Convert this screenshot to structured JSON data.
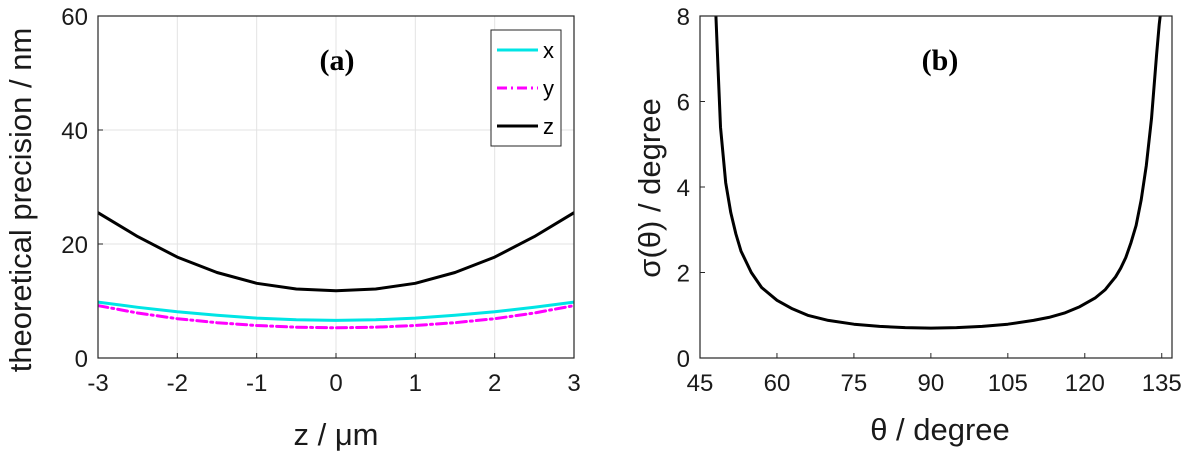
{
  "chart_data": [
    {
      "type": "line",
      "panel_label": "(a)",
      "xlabel": "z / μm",
      "ylabel": "theoretical precision / nm",
      "xlim": [
        -3,
        3
      ],
      "ylim": [
        0,
        60
      ],
      "xticks": [
        -3,
        -2,
        -1,
        0,
        1,
        2,
        3
      ],
      "yticks": [
        0,
        20,
        40,
        60
      ],
      "grid": true,
      "legend_position": "top-right",
      "x": [
        -3,
        -2.5,
        -2,
        -1.5,
        -1,
        -0.5,
        0,
        0.5,
        1,
        1.5,
        2,
        2.5,
        3
      ],
      "series": [
        {
          "name": "x",
          "color": "#00e5e5",
          "style": "solid",
          "values": [
            9.8,
            8.9,
            8.1,
            7.5,
            7.0,
            6.7,
            6.6,
            6.7,
            7.0,
            7.5,
            8.1,
            8.9,
            9.8
          ]
        },
        {
          "name": "y",
          "color": "#ff00ff",
          "style": "dashdot",
          "values": [
            9.2,
            7.9,
            6.9,
            6.2,
            5.7,
            5.4,
            5.3,
            5.4,
            5.7,
            6.2,
            6.9,
            7.9,
            9.2
          ]
        },
        {
          "name": "z",
          "color": "#000000",
          "style": "solid",
          "values": [
            25.5,
            21.3,
            17.7,
            15.0,
            13.1,
            12.1,
            11.8,
            12.1,
            13.1,
            15.0,
            17.7,
            21.3,
            25.5
          ]
        }
      ]
    },
    {
      "type": "line",
      "panel_label": "(b)",
      "xlabel": "θ / degree",
      "ylabel": "σ(θ) / degree",
      "xlim": [
        45,
        137
      ],
      "ylim": [
        0,
        8
      ],
      "xticks": [
        45,
        60,
        75,
        90,
        105,
        120,
        135
      ],
      "yticks": [
        0,
        2,
        4,
        6,
        8
      ],
      "grid": false,
      "series": [
        {
          "name": "",
          "color": "#000000",
          "style": "solid",
          "x": [
            48,
            48.5,
            49,
            50,
            51,
            52,
            53,
            55,
            57,
            60,
            63,
            66,
            70,
            75,
            80,
            85,
            90,
            95,
            100,
            105,
            110,
            113,
            116,
            119,
            122,
            124,
            125,
            126,
            127,
            128,
            129,
            130,
            131,
            132,
            133,
            134,
            134.5,
            135
          ],
          "values": [
            8.3,
            6.8,
            5.4,
            4.1,
            3.4,
            2.9,
            2.5,
            2.0,
            1.65,
            1.35,
            1.15,
            1.0,
            0.88,
            0.79,
            0.74,
            0.71,
            0.7,
            0.71,
            0.74,
            0.79,
            0.88,
            0.95,
            1.05,
            1.2,
            1.4,
            1.6,
            1.75,
            1.9,
            2.1,
            2.35,
            2.7,
            3.1,
            3.7,
            4.5,
            5.6,
            7.1,
            7.8,
            8.3
          ]
        }
      ]
    }
  ]
}
